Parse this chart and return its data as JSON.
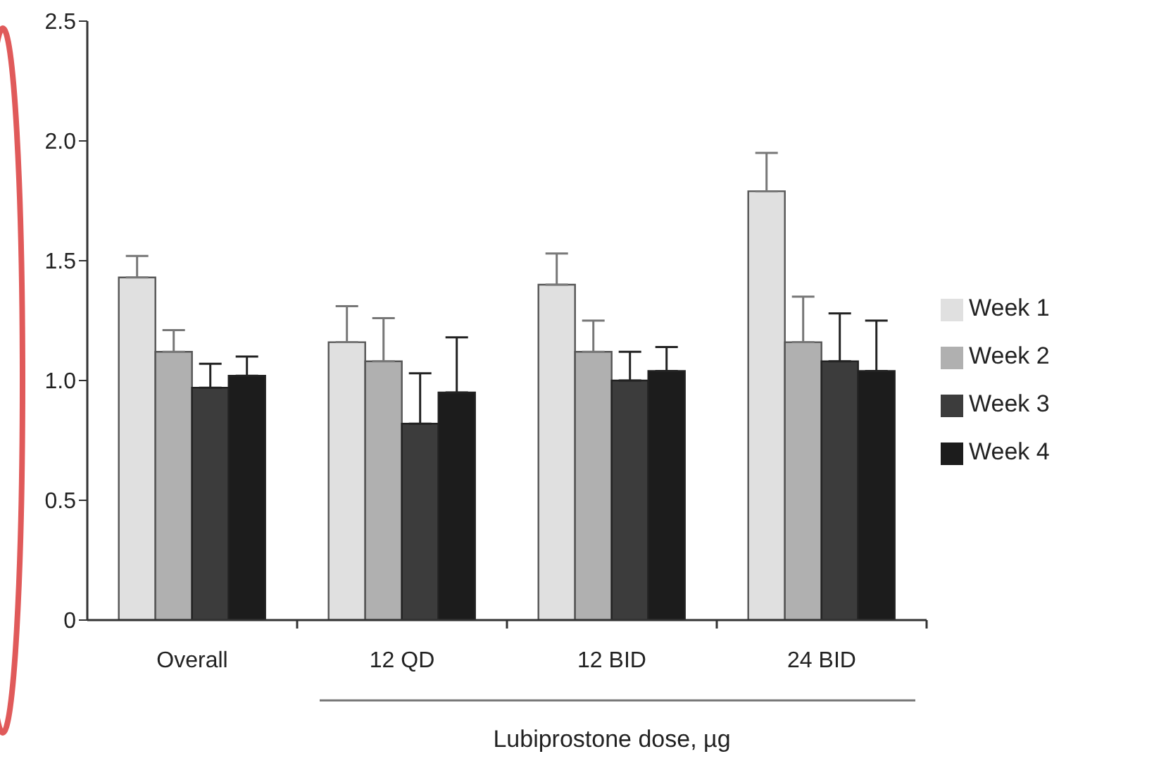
{
  "chart_data": {
    "type": "bar",
    "xlabel": "Lubiprostone dose, µg",
    "categories": [
      "Overall",
      "12 QD",
      "12 BID",
      "24 BID"
    ],
    "series": [
      {
        "name": "Week 1",
        "color": "#e0e0e0",
        "values": [
          1.43,
          1.16,
          1.4,
          1.79
        ],
        "errors": [
          [
            1.43,
            1.52
          ],
          [
            1.16,
            1.31
          ],
          [
            1.4,
            1.53
          ],
          [
            1.79,
            1.95
          ]
        ]
      },
      {
        "name": "Week 2",
        "color": "#b0b0b0",
        "values": [
          1.12,
          1.08,
          1.12,
          1.16
        ],
        "errors": [
          [
            1.12,
            1.21
          ],
          [
            1.08,
            1.26
          ],
          [
            1.12,
            1.25
          ],
          [
            1.16,
            1.35
          ]
        ]
      },
      {
        "name": "Week 3",
        "color": "#3c3c3c",
        "values": [
          0.97,
          0.82,
          1.0,
          1.08
        ],
        "errors": [
          [
            0.97,
            1.07
          ],
          [
            0.82,
            1.03
          ],
          [
            1.0,
            1.12
          ],
          [
            1.08,
            1.28
          ]
        ]
      },
      {
        "name": "Week 4",
        "color": "#1c1c1c",
        "values": [
          1.02,
          0.95,
          1.04,
          1.04
        ],
        "errors": [
          [
            1.02,
            1.1
          ],
          [
            0.95,
            1.18
          ],
          [
            1.04,
            1.14
          ],
          [
            1.04,
            1.25
          ]
        ]
      }
    ],
    "ylim": [
      0,
      2.5
    ],
    "yticks": [
      {
        "value": 0,
        "label": "0"
      },
      {
        "value": 0.5,
        "label": "0.5"
      },
      {
        "value": 1,
        "label": "1.0"
      },
      {
        "value": 1.5,
        "label": "1.5"
      },
      {
        "value": 2,
        "label": "2.0"
      },
      {
        "value": 2.5,
        "label": "2.5"
      }
    ],
    "grid": false,
    "legend": "right"
  }
}
